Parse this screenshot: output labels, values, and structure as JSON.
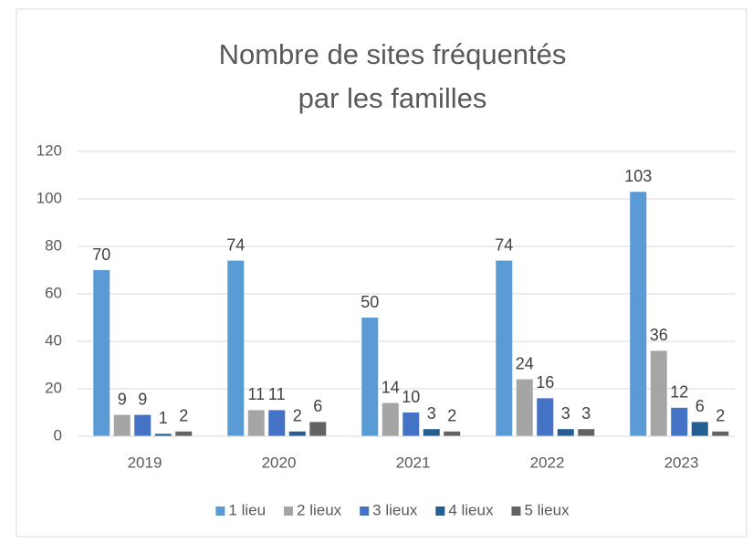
{
  "chart_data": {
    "type": "bar",
    "title": [
      "Nombre de sites fréquentés",
      "par les familles"
    ],
    "categories": [
      "2019",
      "2020",
      "2021",
      "2022",
      "2023"
    ],
    "series": [
      {
        "name": "1 lieu",
        "color": "#5b9bd5",
        "values": [
          70,
          74,
          50,
          74,
          103
        ]
      },
      {
        "name": "2 lieux",
        "color": "#a5a5a5",
        "values": [
          9,
          11,
          14,
          24,
          36
        ]
      },
      {
        "name": "3 lieux",
        "color": "#4472c4",
        "values": [
          9,
          11,
          10,
          16,
          12
        ]
      },
      {
        "name": "4 lieux",
        "color": "#255e91",
        "values": [
          1,
          2,
          3,
          3,
          6
        ]
      },
      {
        "name": "5 lieux",
        "color": "#636363",
        "values": [
          2,
          6,
          2,
          3,
          2
        ]
      }
    ],
    "ylim": [
      0,
      120
    ],
    "yticks": [
      0,
      20,
      40,
      60,
      80,
      100,
      120
    ],
    "grid": true,
    "legend": "bottom"
  }
}
